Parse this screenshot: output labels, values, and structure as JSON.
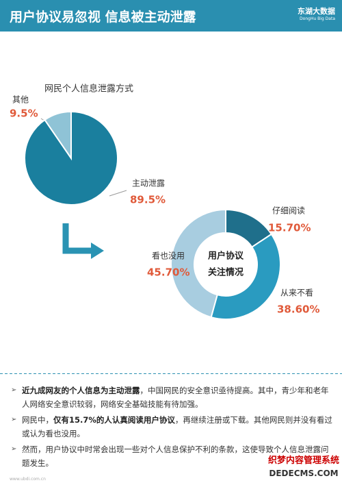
{
  "header": {
    "title": "用户协议易忽视 信息被主动泄露",
    "logo": "东湖大数据",
    "logo_sub": "DongHu Big Data"
  },
  "chart_data": [
    {
      "type": "pie",
      "title": "网民个人信息泄露方式",
      "categories": [
        "主动泄露",
        "其他"
      ],
      "values": [
        89.5,
        9.5
      ],
      "value_labels": [
        "89.5%",
        "9.5%"
      ],
      "colors": [
        "#1a7f9e",
        "#8fc3d6"
      ]
    },
    {
      "type": "donut",
      "center_label": [
        "用户协议",
        "关注情况"
      ],
      "categories": [
        "仔细阅读",
        "从来不看",
        "看也没用"
      ],
      "values": [
        15.7,
        38.6,
        45.7
      ],
      "value_labels": [
        "15.70%",
        "38.60%",
        "45.70%"
      ],
      "colors": [
        "#1f6f8b",
        "#2a9bc0",
        "#a8cde0"
      ]
    }
  ],
  "bullets": [
    [
      {
        "text": "近九成网友的个人信息为主动泄露",
        "bold": true
      },
      {
        "text": "，中国网民的安全意识亟待提高。其中，青少年和老年人网络安全意识较弱，网络安全基础技能有待加强。",
        "bold": false
      }
    ],
    [
      {
        "text": "网民中，",
        "bold": false
      },
      {
        "text": "仅有15.7%的人认真阅读用户协议",
        "bold": true
      },
      {
        "text": "，再继续注册或下载。其他网民则并没有看过或认为看也没用。",
        "bold": false
      }
    ],
    [
      {
        "text": "然而，用户协议中时常会出现一些对个人信息保护不利的条款，这使导致个人信息泄露问题发生。",
        "bold": false
      }
    ]
  ],
  "footer": "www.ubdi.com.cn",
  "watermark": [
    "织梦内容管理系统",
    "DEDECMS.COM"
  ]
}
